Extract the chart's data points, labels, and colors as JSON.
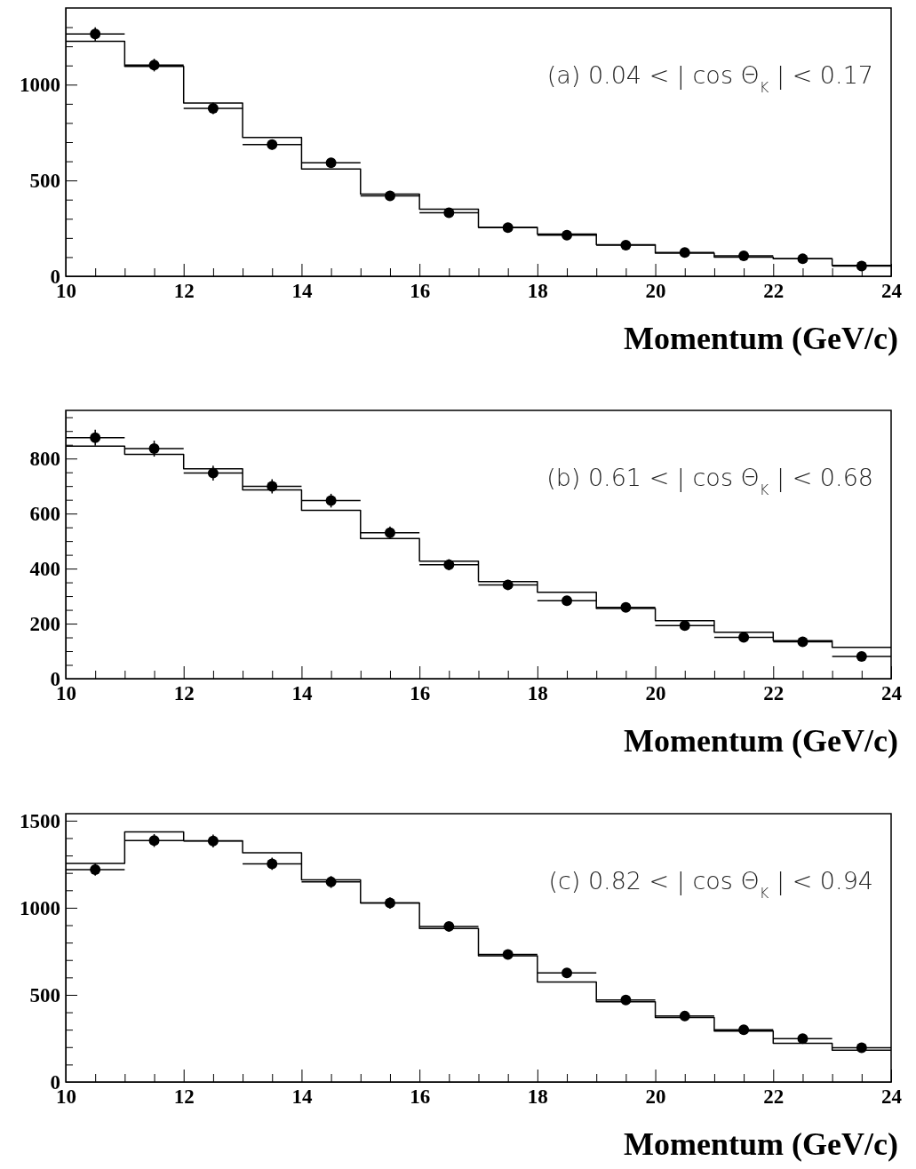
{
  "chart_data": [
    {
      "type": "histogram",
      "xlabel": "Momentum (GeV/c)",
      "annotations": [
        "(a)  0.04 < | cos Θ$_{K}$ | < 0.17"
      ],
      "bins": [
        10,
        11,
        12,
        13,
        14,
        15,
        16,
        17,
        18,
        19,
        20,
        21,
        22,
        23,
        24
      ],
      "xlim": [
        10,
        24
      ],
      "xticks": [
        10,
        {
          "value": 10.5,
          "label": null
        },
        {
          "value": 11,
          "label": null
        },
        {
          "value": 11.5,
          "label": null
        },
        12,
        {
          "value": 12.5,
          "label": null
        },
        {
          "value": 13,
          "label": null
        },
        {
          "value": 13.5,
          "label": null
        },
        14,
        {
          "value": 14.5,
          "label": null
        },
        {
          "value": 15,
          "label": null
        },
        {
          "value": 15.5,
          "label": null
        },
        16,
        {
          "value": 16.5,
          "label": null
        },
        {
          "value": 17,
          "label": null
        },
        {
          "value": 17.5,
          "label": null
        },
        18,
        {
          "value": 18.5,
          "label": null
        },
        {
          "value": 19,
          "label": null
        },
        {
          "value": 19.5,
          "label": null
        },
        20,
        {
          "value": 20.5,
          "label": null
        },
        {
          "value": 21,
          "label": null
        },
        {
          "value": 21.5,
          "label": null
        },
        22,
        {
          "value": 22.5,
          "label": null
        },
        {
          "value": 23,
          "label": null
        },
        {
          "value": 23.5,
          "label": null
        },
        24
      ],
      "ylim": [
        0,
        1400
      ],
      "yticks": [
        0,
        {
          "value": 100,
          "label": null
        },
        {
          "value": 200,
          "label": null
        },
        {
          "value": 300,
          "label": null
        },
        {
          "value": 400,
          "label": null
        },
        500,
        {
          "value": 600,
          "label": null
        },
        {
          "value": 700,
          "label": null
        },
        {
          "value": 800,
          "label": null
        },
        {
          "value": 900,
          "label": null
        },
        1000,
        {
          "value": 1100,
          "label": null
        },
        {
          "value": 1200,
          "label": null
        },
        {
          "value": 1300,
          "label": null
        }
      ],
      "series": [
        {
          "type": "histogram",
          "color": "#000000",
          "values": [
            1226,
            1095,
            904,
            724,
            560,
            429,
            350,
            255,
            220,
            165,
            120,
            100,
            91,
            57
          ]
        },
        {
          "type": "scatter",
          "color": "#000000",
          "marker": "circle",
          "x": [
            10.5,
            11.5,
            12.5,
            13.5,
            14.5,
            15.5,
            16.5,
            17.5,
            18.5,
            19.5,
            20.5,
            21.5,
            22.5,
            23.5
          ],
          "values": [
            1264,
            1102,
            876,
            687,
            592,
            419,
            332,
            254,
            214,
            162,
            124,
            107,
            91,
            53
          ],
          "errors": [
            35,
            33,
            30,
            26,
            24,
            20,
            18,
            16,
            15,
            13,
            11,
            10,
            10,
            7
          ],
          "xerrors": [
            0.5,
            0.5,
            0.5,
            0.5,
            0.5,
            0.5,
            0.5,
            0.5,
            0.5,
            0.5,
            0.5,
            0.5,
            0.5,
            0.5
          ]
        }
      ]
    },
    {
      "type": "histogram",
      "xlabel": "Momentum (GeV/c)",
      "annotations": [
        "(b)  0.61 < | cos Θ$_{K}$ | < 0.68"
      ],
      "bins": [
        10,
        11,
        12,
        13,
        14,
        15,
        16,
        17,
        18,
        19,
        20,
        21,
        22,
        23,
        24
      ],
      "xlim": [
        10,
        24
      ],
      "xticks": [
        10,
        {
          "value": 10.5,
          "label": null
        },
        {
          "value": 11,
          "label": null
        },
        {
          "value": 11.5,
          "label": null
        },
        12,
        {
          "value": 12.5,
          "label": null
        },
        {
          "value": 13,
          "label": null
        },
        {
          "value": 13.5,
          "label": null
        },
        14,
        {
          "value": 14.5,
          "label": null
        },
        {
          "value": 15,
          "label": null
        },
        {
          "value": 15.5,
          "label": null
        },
        16,
        {
          "value": 16.5,
          "label": null
        },
        {
          "value": 17,
          "label": null
        },
        {
          "value": 17.5,
          "label": null
        },
        18,
        {
          "value": 18.5,
          "label": null
        },
        {
          "value": 19,
          "label": null
        },
        {
          "value": 19.5,
          "label": null
        },
        20,
        {
          "value": 20.5,
          "label": null
        },
        {
          "value": 21,
          "label": null
        },
        {
          "value": 21.5,
          "label": null
        },
        22,
        {
          "value": 22.5,
          "label": null
        },
        {
          "value": 23,
          "label": null
        },
        {
          "value": 23.5,
          "label": null
        },
        24
      ],
      "ylim": [
        0,
        975
      ],
      "yticks": [
        0,
        {
          "value": 50,
          "label": null
        },
        {
          "value": 100,
          "label": null
        },
        {
          "value": 150,
          "label": null
        },
        200,
        {
          "value": 250,
          "label": null
        },
        {
          "value": 300,
          "label": null
        },
        {
          "value": 350,
          "label": null
        },
        400,
        {
          "value": 450,
          "label": null
        },
        {
          "value": 500,
          "label": null
        },
        {
          "value": 550,
          "label": null
        },
        600,
        {
          "value": 650,
          "label": null
        },
        {
          "value": 700,
          "label": null
        },
        {
          "value": 750,
          "label": null
        },
        800,
        {
          "value": 850,
          "label": null
        },
        {
          "value": 900,
          "label": null
        },
        {
          "value": 950,
          "label": null
        }
      ],
      "series": [
        {
          "type": "histogram",
          "color": "#000000",
          "values": [
            845,
            815,
            763,
            686,
            612,
            509,
            427,
            353,
            314,
            255,
            211,
            169,
            138,
            114
          ]
        },
        {
          "type": "scatter",
          "color": "#000000",
          "marker": "circle",
          "x": [
            10.5,
            11.5,
            12.5,
            13.5,
            14.5,
            15.5,
            16.5,
            17.5,
            18.5,
            19.5,
            20.5,
            21.5,
            22.5,
            23.5
          ],
          "values": [
            876,
            836,
            747,
            699,
            647,
            530,
            414,
            341,
            283,
            259,
            193,
            150,
            134,
            81
          ],
          "errors": [
            29,
            29,
            27,
            26,
            25,
            23,
            20,
            18,
            17,
            16,
            14,
            12,
            12,
            9
          ],
          "xerrors": [
            0.5,
            0.5,
            0.5,
            0.5,
            0.5,
            0.5,
            0.5,
            0.5,
            0.5,
            0.5,
            0.5,
            0.5,
            0.5,
            0.5
          ]
        }
      ]
    },
    {
      "type": "histogram",
      "xlabel": "Momentum (GeV/c)",
      "annotations": [
        "(c)  0.82 < | cos Θ$_{K}$ | < 0.94"
      ],
      "bins": [
        10,
        11,
        12,
        13,
        14,
        15,
        16,
        17,
        18,
        19,
        20,
        21,
        22,
        23,
        24
      ],
      "xlim": [
        10,
        24
      ],
      "xticks": [
        10,
        {
          "value": 10.5,
          "label": null
        },
        {
          "value": 11,
          "label": null
        },
        {
          "value": 11.5,
          "label": null
        },
        12,
        {
          "value": 12.5,
          "label": null
        },
        {
          "value": 13,
          "label": null
        },
        {
          "value": 13.5,
          "label": null
        },
        14,
        {
          "value": 14.5,
          "label": null
        },
        {
          "value": 15,
          "label": null
        },
        {
          "value": 15.5,
          "label": null
        },
        16,
        {
          "value": 16.5,
          "label": null
        },
        {
          "value": 17,
          "label": null
        },
        {
          "value": 17.5,
          "label": null
        },
        18,
        {
          "value": 18.5,
          "label": null
        },
        {
          "value": 19,
          "label": null
        },
        {
          "value": 19.5,
          "label": null
        },
        20,
        {
          "value": 20.5,
          "label": null
        },
        {
          "value": 21,
          "label": null
        },
        {
          "value": 21.5,
          "label": null
        },
        22,
        {
          "value": 22.5,
          "label": null
        },
        {
          "value": 23,
          "label": null
        },
        {
          "value": 23.5,
          "label": null
        },
        24
      ],
      "ylim": [
        0,
        1540
      ],
      "yticks": [
        0,
        {
          "value": 100,
          "label": null
        },
        {
          "value": 200,
          "label": null
        },
        {
          "value": 300,
          "label": null
        },
        {
          "value": 400,
          "label": null
        },
        500,
        {
          "value": 600,
          "label": null
        },
        {
          "value": 700,
          "label": null
        },
        {
          "value": 800,
          "label": null
        },
        {
          "value": 900,
          "label": null
        },
        1000,
        {
          "value": 1100,
          "label": null
        },
        {
          "value": 1200,
          "label": null
        },
        {
          "value": 1300,
          "label": null
        },
        {
          "value": 1400,
          "label": null
        },
        1500
      ],
      "series": [
        {
          "type": "histogram",
          "color": "#000000",
          "values": [
            1255,
            1435,
            1385,
            1315,
            1160,
            1027,
            881,
            724,
            574,
            460,
            370,
            292,
            222,
            182
          ]
        },
        {
          "type": "scatter",
          "color": "#000000",
          "marker": "circle",
          "x": [
            10.5,
            11.5,
            12.5,
            13.5,
            14.5,
            15.5,
            16.5,
            17.5,
            18.5,
            19.5,
            20.5,
            21.5,
            22.5,
            23.5
          ],
          "values": [
            1219,
            1386,
            1383,
            1252,
            1148,
            1027,
            893,
            732,
            626,
            470,
            378,
            300,
            248,
            196
          ],
          "errors": [
            35,
            37,
            37,
            35,
            34,
            32,
            30,
            27,
            25,
            22,
            19,
            17,
            16,
            14
          ],
          "xerrors": [
            0.5,
            0.5,
            0.5,
            0.5,
            0.5,
            0.5,
            0.5,
            0.5,
            0.5,
            0.5,
            0.5,
            0.5,
            0.5,
            0.5
          ]
        }
      ]
    }
  ]
}
